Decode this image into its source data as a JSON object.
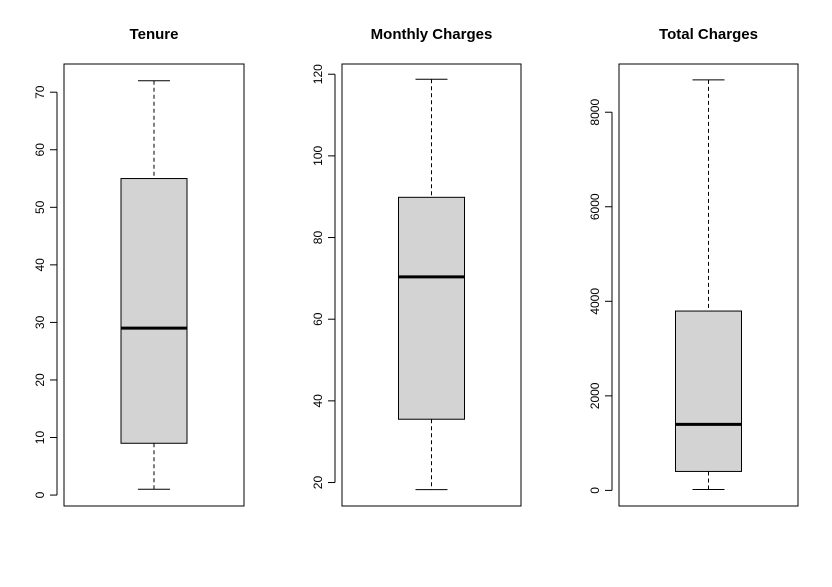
{
  "chart_data": [
    {
      "type": "boxplot",
      "title": "Tenure",
      "xlabel": "",
      "ylabel": "",
      "ylim": [
        -1.9,
        74.9
      ],
      "yticks": [
        0,
        10,
        20,
        30,
        40,
        50,
        60,
        70
      ],
      "tick_labels": [
        "0",
        "10",
        "20",
        "30",
        "40",
        "50",
        "60",
        "70"
      ],
      "box": {
        "min": 1,
        "q1": 9,
        "median": 29,
        "q3": 55,
        "max": 72
      },
      "grid": false
    },
    {
      "type": "boxplot",
      "title": "Monthly Charges",
      "xlabel": "",
      "ylabel": "",
      "ylim": [
        14.25,
        122.5
      ],
      "yticks": [
        20,
        40,
        60,
        80,
        100,
        120
      ],
      "tick_labels": [
        "20",
        "40",
        "60",
        "80",
        "100",
        "120"
      ],
      "box": {
        "min": 18.25,
        "q1": 35.5,
        "median": 70.35,
        "q3": 89.85,
        "max": 118.75
      },
      "grid": false
    },
    {
      "type": "boxplot",
      "title": "Total Charges",
      "xlabel": "",
      "ylabel": "",
      "ylim": [
        -330,
        9020
      ],
      "yticks": [
        0,
        2000,
        4000,
        6000,
        8000
      ],
      "tick_labels": [
        "0",
        "2000",
        "4000",
        "6000",
        "8000"
      ],
      "box": {
        "min": 19,
        "q1": 401,
        "median": 1397,
        "q3": 3794,
        "max": 8685
      },
      "grid": false
    }
  ],
  "colors": {
    "box_fill": "#d3d3d3",
    "stroke": "#000000",
    "background": "#ffffff"
  }
}
